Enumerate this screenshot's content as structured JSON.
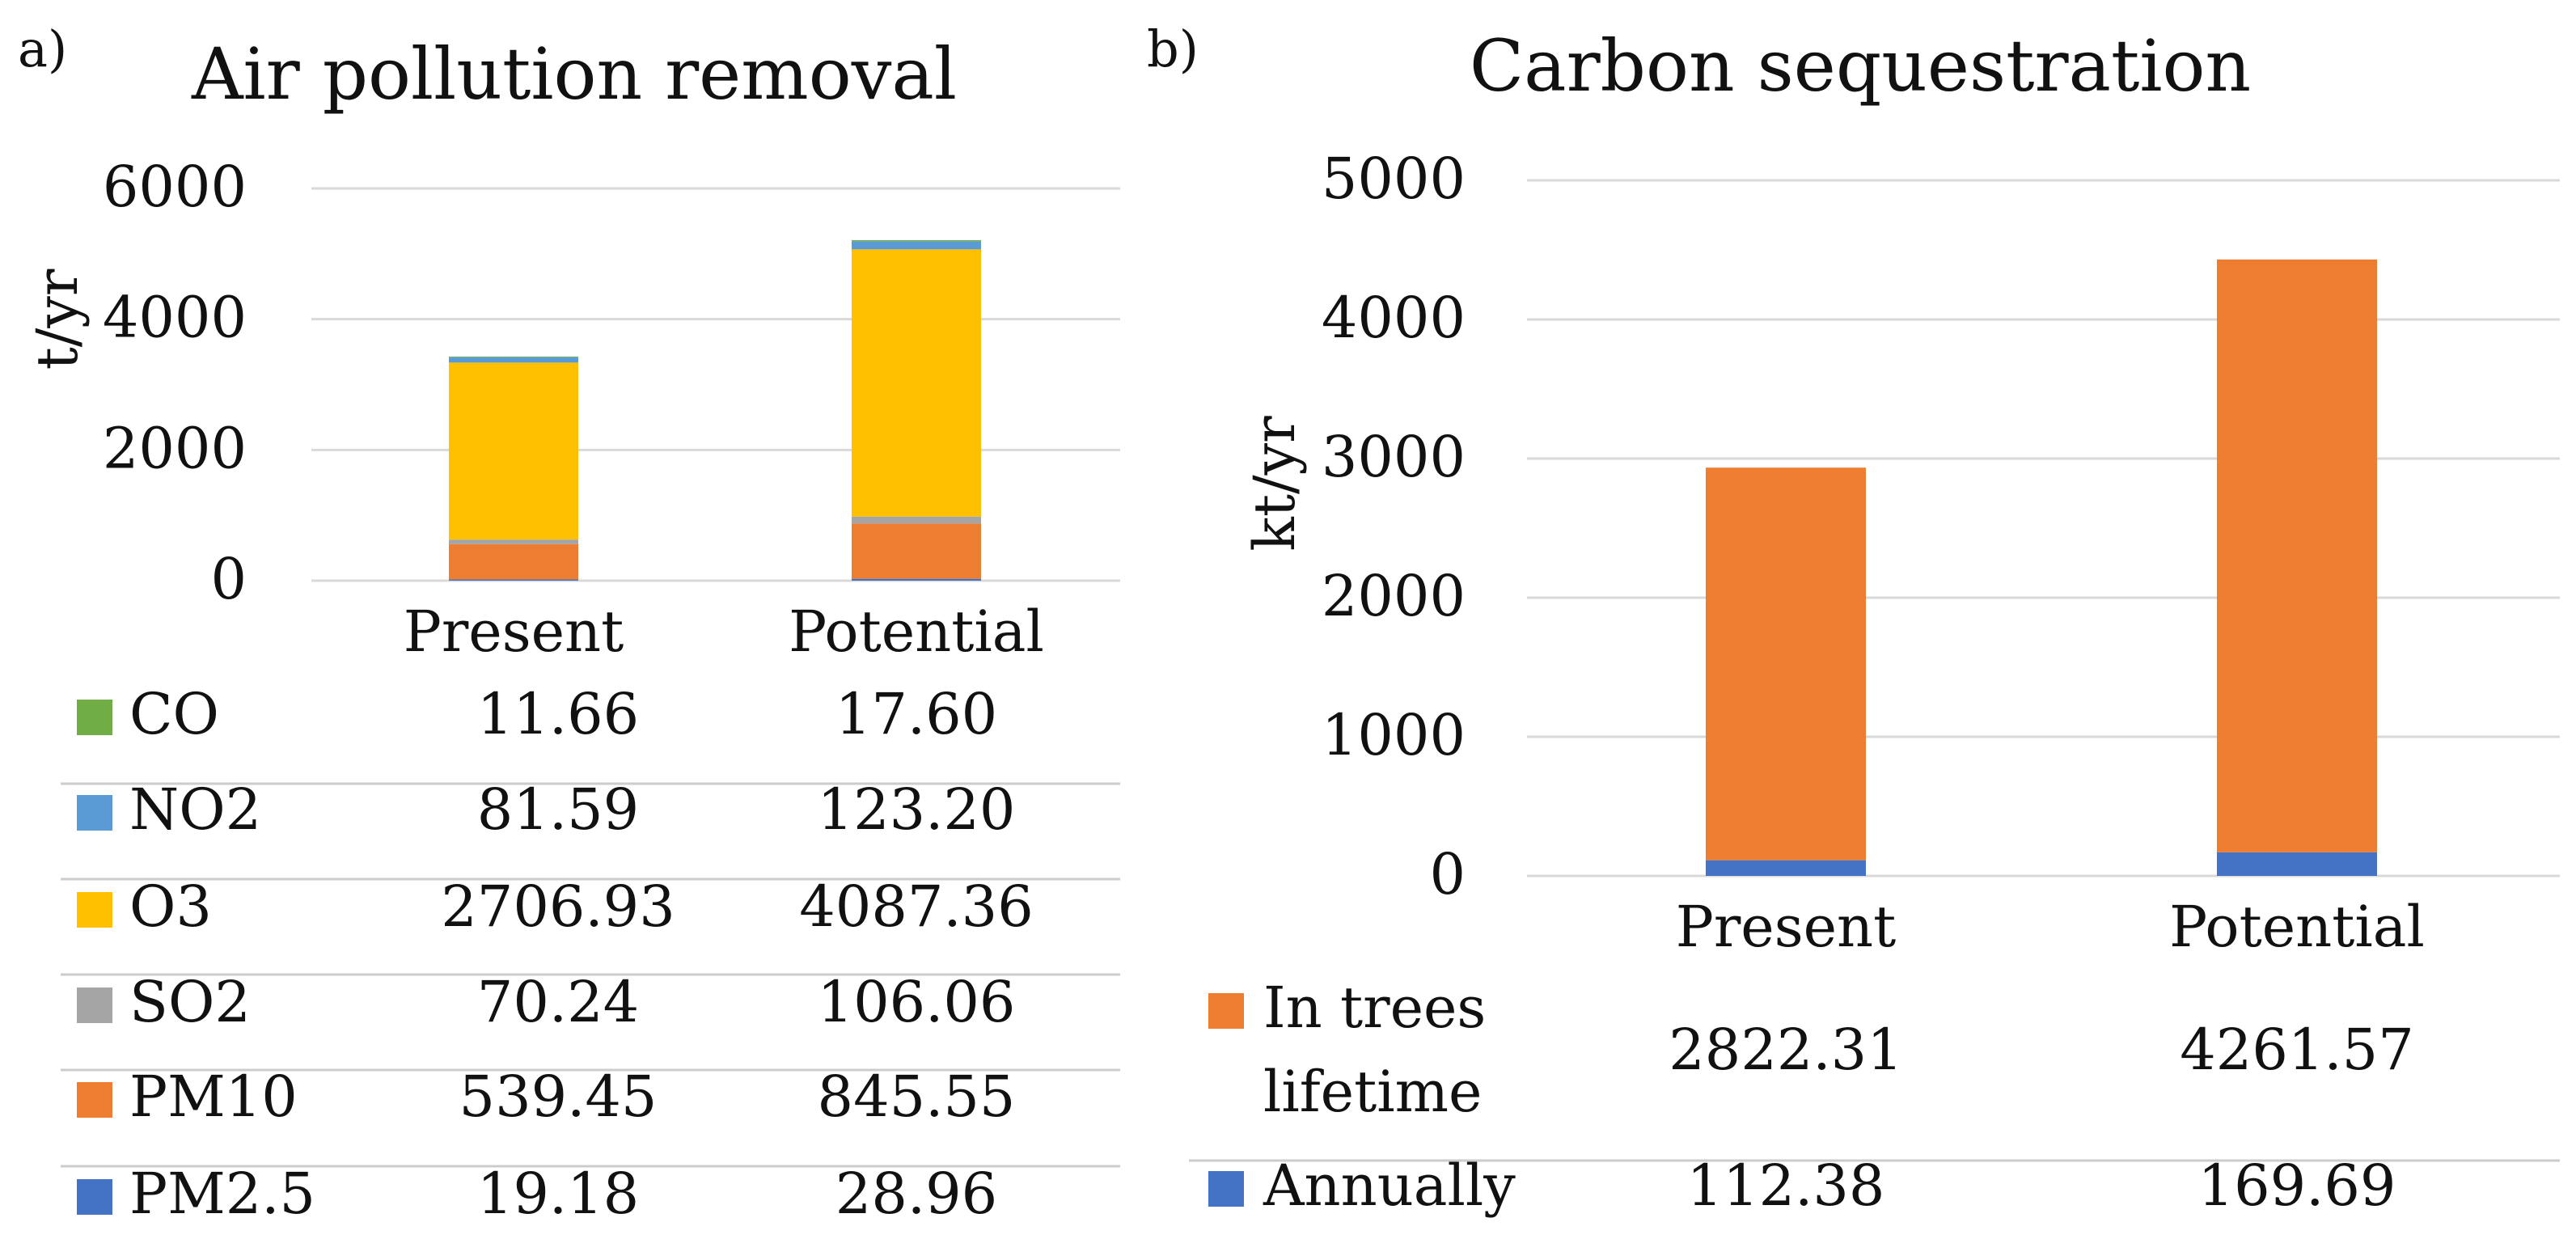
{
  "chart_data": [
    {
      "panel_label": "a)",
      "type": "bar",
      "stacked": true,
      "title": "Air pollution removal",
      "ylabel": "t/yr",
      "ylim": [
        0,
        6000
      ],
      "yticks": [
        "0",
        "2000",
        "4000",
        "6000"
      ],
      "categories": [
        "Present",
        "Potential"
      ],
      "series": [
        {
          "name": "PM2.5",
          "color": "#4472C4",
          "values": [
            19.18,
            28.96
          ],
          "labels": [
            "19.18",
            "28.96"
          ]
        },
        {
          "name": "PM10",
          "color": "#ED7D31",
          "values": [
            539.45,
            845.55
          ],
          "labels": [
            "539.45",
            "845.55"
          ]
        },
        {
          "name": "SO2",
          "color": "#A5A5A5",
          "values": [
            70.24,
            106.06
          ],
          "labels": [
            "70.24",
            "106.06"
          ]
        },
        {
          "name": "O3",
          "color": "#FFC000",
          "values": [
            2706.93,
            4087.36
          ],
          "labels": [
            "2706.93",
            "4087.36"
          ]
        },
        {
          "name": "NO2",
          "color": "#5B9BD5",
          "values": [
            81.59,
            123.2
          ],
          "labels": [
            "81.59",
            "123.20"
          ]
        },
        {
          "name": "CO",
          "color": "#70AD47",
          "values": [
            11.66,
            17.6
          ],
          "labels": [
            "11.66",
            "17.60"
          ]
        }
      ],
      "legend_order": [
        "CO",
        "NO2",
        "O3",
        "SO2",
        "PM10",
        "PM2.5"
      ]
    },
    {
      "panel_label": "b)",
      "type": "bar",
      "stacked": true,
      "title": "Carbon sequestration",
      "ylabel": "kt/yr",
      "ylim": [
        0,
        5000
      ],
      "yticks": [
        "0",
        "1000",
        "2000",
        "3000",
        "4000",
        "5000"
      ],
      "categories": [
        "Present",
        "Potential"
      ],
      "series": [
        {
          "name": "Annually",
          "color": "#4472C4",
          "values": [
            112.38,
            169.69
          ],
          "labels": [
            "112.38",
            "169.69"
          ]
        },
        {
          "name": "In trees lifetime",
          "name_lines": [
            "In trees",
            "lifetime"
          ],
          "color": "#ED7D31",
          "values": [
            2822.31,
            4261.57
          ],
          "labels": [
            "2822.31",
            "4261.57"
          ]
        }
      ],
      "legend_order": [
        "In trees lifetime",
        "Annually"
      ]
    }
  ]
}
